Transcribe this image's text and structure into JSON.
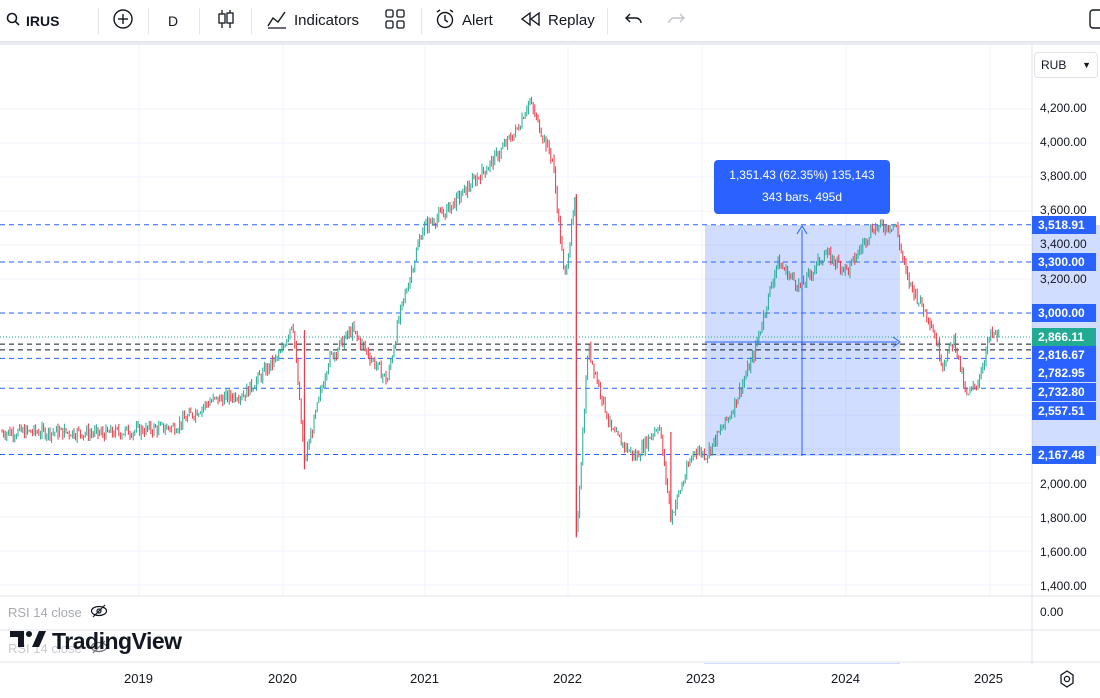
{
  "toolbar": {
    "symbol": "IRUS",
    "interval": "D",
    "indicators_label": "Indicators",
    "alert_label": "Alert",
    "replay_label": "Replay"
  },
  "currency": {
    "label": "RUB"
  },
  "measure": {
    "line1": "1,351.43 (62.35%) 135,143",
    "line2": "343 bars, 495d"
  },
  "price_axis": {
    "labels": [
      "4,200.00",
      "4,000.00",
      "3,800.00",
      "3,600.00",
      "3,400.00",
      "3,200.00",
      "2,000.00",
      "1,800.00",
      "1,600.00",
      "1,400.00"
    ],
    "tags": [
      {
        "text": "3,518.91",
        "color": "#2962ff"
      },
      {
        "text": "3,300.00",
        "color": "#2962ff"
      },
      {
        "text": "3,000.00",
        "color": "#2962ff"
      },
      {
        "text": "2,866.11",
        "color": "#22ab94"
      },
      {
        "text": "2,816.67",
        "color": "#2962ff"
      },
      {
        "text": "2,782.95",
        "color": "#2962ff"
      },
      {
        "text": "2,732.80",
        "color": "#2962ff"
      },
      {
        "text": "2,557.51",
        "color": "#2962ff"
      },
      {
        "text": "2,167.48",
        "color": "#2962ff"
      }
    ]
  },
  "time_axis": {
    "labels": [
      "2019",
      "2020",
      "2021",
      "2022",
      "2023",
      "2024",
      "2025"
    ]
  },
  "rsi": {
    "label": "RSI 14 close",
    "value": "0.00"
  },
  "brand": {
    "name": "TradingView"
  },
  "colors": {
    "up": "#22ab94",
    "down": "#f23645",
    "accent": "#2962ff"
  },
  "chart_data": {
    "type": "line",
    "symbol": "IRUS",
    "interval": "D",
    "x": [
      "2018-07",
      "2018-10",
      "2019-01",
      "2019-04",
      "2019-07",
      "2019-10",
      "2020-01",
      "2020-02",
      "2020-03",
      "2020-05",
      "2020-07",
      "2020-10",
      "2020-11",
      "2021-01",
      "2021-03",
      "2021-05",
      "2021-07",
      "2021-09",
      "2021-10",
      "2021-12",
      "2022-01",
      "2022-02",
      "2022-02",
      "2022-03",
      "2022-05",
      "2022-07",
      "2022-09",
      "2022-10",
      "2022-12",
      "2023-01",
      "2023-03",
      "2023-05",
      "2023-07",
      "2023-09",
      "2023-11",
      "2024-01",
      "2024-03",
      "2024-05",
      "2024-06",
      "2024-08",
      "2024-09",
      "2024-10",
      "2024-11",
      "2024-12",
      "2025-01"
    ],
    "values": [
      2300,
      2290,
      2310,
      2330,
      2480,
      2530,
      2760,
      2960,
      2120,
      2720,
      2900,
      2600,
      2970,
      3500,
      3600,
      3750,
      3900,
      4080,
      4250,
      3900,
      3200,
      3700,
      1680,
      2800,
      2300,
      2150,
      2350,
      1800,
      2200,
      2167,
      2400,
      2750,
      3300,
      3150,
      3350,
      3250,
      3500,
      3519,
      3200,
      2950,
      2700,
      2850,
      2500,
      2600,
      2866
    ],
    "ylim": [
      1400,
      4300
    ],
    "horizontal_levels": [
      3518.91,
      3300.0,
      3000.0,
      2866.11,
      2816.67,
      2782.95,
      2732.8,
      2557.51,
      2167.48
    ],
    "measure": {
      "change": "1,351.43",
      "percent": "62.35%",
      "volume": "135,143",
      "bars": "343",
      "days": "495d"
    },
    "grid": true
  }
}
